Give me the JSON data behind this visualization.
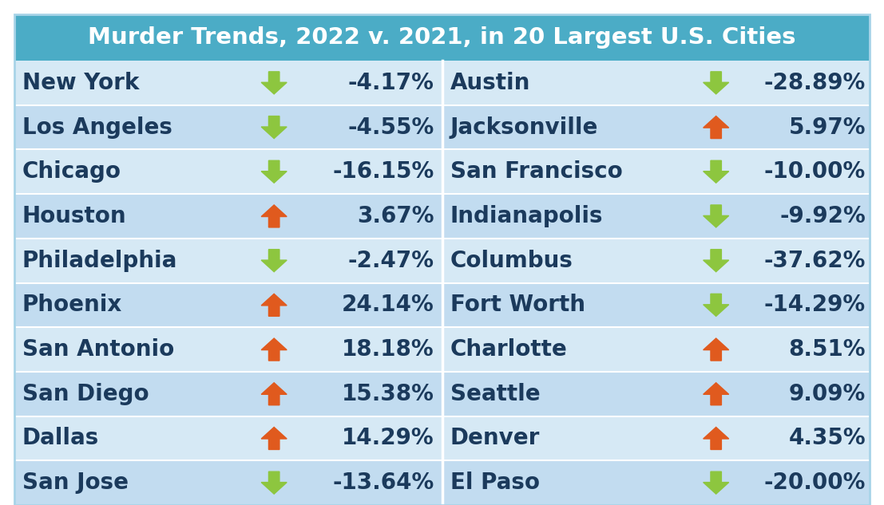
{
  "title": "Murder Trends, 2022 v. 2021, in 20 Largest U.S. Cities",
  "title_bg": "#4BACC6",
  "title_color": "#FFFFFF",
  "header_fontsize": 21,
  "row_fontsize": 20,
  "value_fontsize": 20,
  "bg_colors": [
    "#D6E9F5",
    "#C2DCF0"
  ],
  "text_color": "#1B3A5C",
  "left_cities": [
    {
      "city": "New York",
      "value": "-4.17%",
      "direction": "down"
    },
    {
      "city": "Los Angeles",
      "value": "-4.55%",
      "direction": "down"
    },
    {
      "city": "Chicago",
      "value": "-16.15%",
      "direction": "down"
    },
    {
      "city": "Houston",
      "value": "3.67%",
      "direction": "up"
    },
    {
      "city": "Philadelphia",
      "value": "-2.47%",
      "direction": "down"
    },
    {
      "city": "Phoenix",
      "value": "24.14%",
      "direction": "up"
    },
    {
      "city": "San Antonio",
      "value": "18.18%",
      "direction": "up"
    },
    {
      "city": "San Diego",
      "value": "15.38%",
      "direction": "up"
    },
    {
      "city": "Dallas",
      "value": "14.29%",
      "direction": "up"
    },
    {
      "city": "San Jose",
      "value": "-13.64%",
      "direction": "down"
    }
  ],
  "right_cities": [
    {
      "city": "Austin",
      "value": "-28.89%",
      "direction": "down"
    },
    {
      "city": "Jacksonville",
      "value": "5.97%",
      "direction": "up"
    },
    {
      "city": "San Francisco",
      "value": "-10.00%",
      "direction": "down"
    },
    {
      "city": "Indianapolis",
      "value": "-9.92%",
      "direction": "down"
    },
    {
      "city": "Columbus",
      "value": "-37.62%",
      "direction": "down"
    },
    {
      "city": "Fort Worth",
      "value": "-14.29%",
      "direction": "down"
    },
    {
      "city": "Charlotte",
      "value": "8.51%",
      "direction": "up"
    },
    {
      "city": "Seattle",
      "value": "9.09%",
      "direction": "up"
    },
    {
      "city": "Denver",
      "value": "4.35%",
      "direction": "up"
    },
    {
      "city": "El Paso",
      "value": "-20.00%",
      "direction": "down"
    }
  ],
  "up_color": "#E05A1E",
  "down_color": "#8DC63F",
  "divider_color": "#FFFFFF",
  "outer_bg": "#FFFFFF"
}
